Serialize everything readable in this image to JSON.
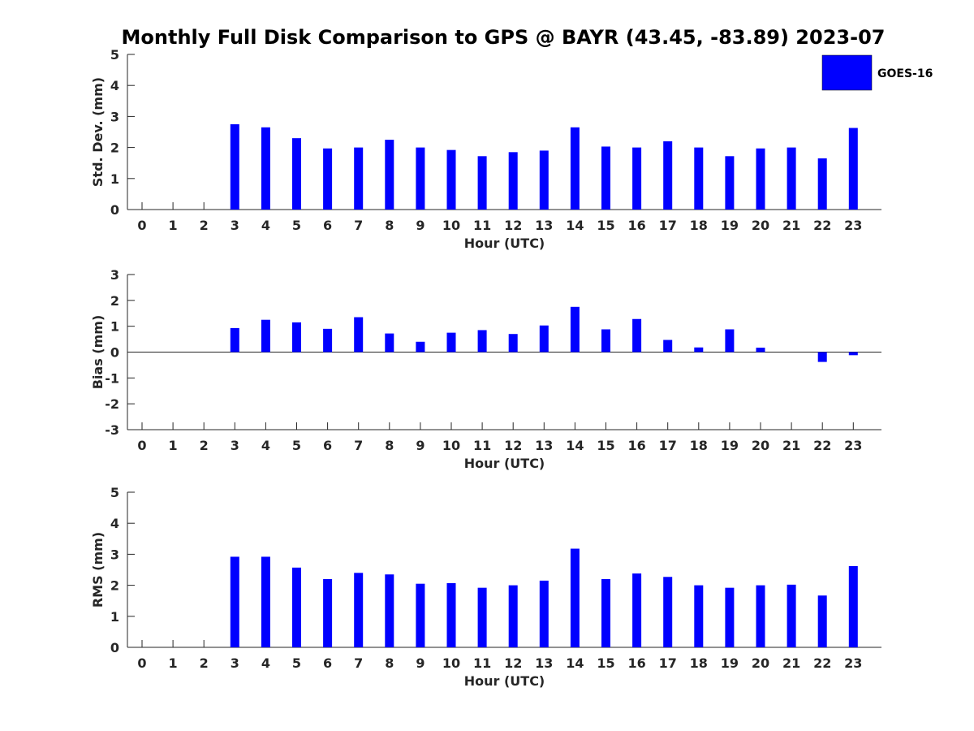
{
  "title": "Monthly Full Disk Comparison to GPS @ BAYR (43.45, -83.89) 2023-07",
  "legend": {
    "label": "GOES-16",
    "color": "#0000ff"
  },
  "chart_data": [
    {
      "type": "bar",
      "name": "std-dev",
      "xlabel": "Hour (UTC)",
      "ylabel": "Std. Dev. (mm)",
      "ylim": [
        0,
        5
      ],
      "yticks": [
        0,
        1,
        2,
        3,
        4,
        5
      ],
      "categories": [
        "0",
        "1",
        "2",
        "3",
        "4",
        "5",
        "6",
        "7",
        "8",
        "9",
        "10",
        "11",
        "12",
        "13",
        "14",
        "15",
        "16",
        "17",
        "18",
        "19",
        "20",
        "21",
        "22",
        "23"
      ],
      "series": [
        {
          "name": "GOES-16",
          "values": [
            null,
            null,
            null,
            2.75,
            2.65,
            2.3,
            1.97,
            2.0,
            2.25,
            2.0,
            1.92,
            1.72,
            1.85,
            1.9,
            2.65,
            2.03,
            2.0,
            2.2,
            2.0,
            1.72,
            1.97,
            2.0,
            1.65,
            2.63
          ]
        }
      ]
    },
    {
      "type": "bar",
      "name": "bias",
      "xlabel": "Hour (UTC)",
      "ylabel": "Bias (mm)",
      "ylim": [
        -3,
        3
      ],
      "yticks": [
        -3,
        -2,
        -1,
        0,
        1,
        2,
        3
      ],
      "categories": [
        "0",
        "1",
        "2",
        "3",
        "4",
        "5",
        "6",
        "7",
        "8",
        "9",
        "10",
        "11",
        "12",
        "13",
        "14",
        "15",
        "16",
        "17",
        "18",
        "19",
        "20",
        "21",
        "22",
        "23"
      ],
      "series": [
        {
          "name": "GOES-16",
          "values": [
            null,
            null,
            null,
            0.93,
            1.25,
            1.15,
            0.9,
            1.35,
            0.72,
            0.4,
            0.75,
            0.85,
            0.7,
            1.03,
            1.75,
            0.88,
            1.28,
            0.47,
            0.18,
            0.88,
            0.17,
            null,
            -0.38,
            -0.12
          ]
        }
      ]
    },
    {
      "type": "bar",
      "name": "rms",
      "xlabel": "Hour (UTC)",
      "ylabel": "RMS (mm)",
      "ylim": [
        0,
        5
      ],
      "yticks": [
        0,
        1,
        2,
        3,
        4,
        5
      ],
      "categories": [
        "0",
        "1",
        "2",
        "3",
        "4",
        "5",
        "6",
        "7",
        "8",
        "9",
        "10",
        "11",
        "12",
        "13",
        "14",
        "15",
        "16",
        "17",
        "18",
        "19",
        "20",
        "21",
        "22",
        "23"
      ],
      "series": [
        {
          "name": "GOES-16",
          "values": [
            null,
            null,
            null,
            2.92,
            2.92,
            2.57,
            2.2,
            2.4,
            2.35,
            2.05,
            2.07,
            1.92,
            2.0,
            2.15,
            3.18,
            2.2,
            2.38,
            2.27,
            2.0,
            1.92,
            2.0,
            2.02,
            1.67,
            2.62
          ]
        }
      ]
    }
  ]
}
